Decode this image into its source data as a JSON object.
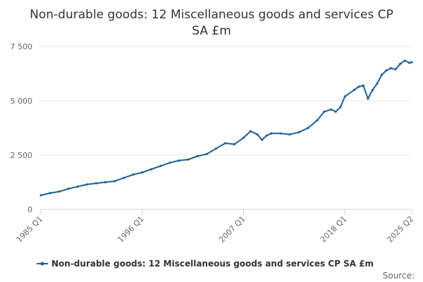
{
  "chart_data": {
    "type": "line",
    "title_lines": [
      "Non-durable goods: 12 Miscellaneous goods and services CP",
      "SA £m"
    ],
    "xlabel": "",
    "ylabel": "",
    "x_range": [
      1985.0,
      2025.25
    ],
    "ylim": [
      0,
      7500
    ],
    "y_ticks": [
      0,
      2500,
      5000,
      7500
    ],
    "y_tick_labels": [
      "0",
      "2 500",
      "5 000",
      "7 500"
    ],
    "x_ticks": [
      1985.0,
      1996.0,
      2007.0,
      2018.0,
      2025.25
    ],
    "x_tick_labels": [
      "1985 Q1",
      "1996 Q1",
      "2007 Q1",
      "2018 Q1",
      "2025 Q2"
    ],
    "grid": true,
    "legend_position": "bottom",
    "series": [
      {
        "name": "Non-durable goods: 12 Miscellaneous goods and services CP SA £m",
        "color": "#206095",
        "x": [
          1985.0,
          1986.0,
          1987.0,
          1988.0,
          1989.0,
          1990.0,
          1991.0,
          1992.0,
          1993.0,
          1994.0,
          1995.0,
          1996.0,
          1997.0,
          1998.0,
          1999.0,
          2000.0,
          2001.0,
          2002.0,
          2003.0,
          2004.0,
          2005.0,
          2006.0,
          2007.0,
          2007.75,
          2008.5,
          2009.0,
          2009.5,
          2010.0,
          2011.0,
          2012.0,
          2013.0,
          2014.0,
          2015.0,
          2015.75,
          2016.5,
          2017.0,
          2017.5,
          2018.0,
          2019.0,
          2019.5,
          2020.0,
          2020.5,
          2021.0,
          2021.5,
          2022.0,
          2022.5,
          2023.0,
          2023.5,
          2024.0,
          2024.5,
          2025.0,
          2025.25
        ],
        "y": [
          650,
          750,
          820,
          950,
          1050,
          1150,
          1200,
          1250,
          1300,
          1450,
          1600,
          1700,
          1850,
          2000,
          2150,
          2250,
          2300,
          2450,
          2550,
          2800,
          3050,
          3000,
          3300,
          3600,
          3450,
          3200,
          3400,
          3500,
          3500,
          3450,
          3550,
          3750,
          4100,
          4500,
          4600,
          4500,
          4700,
          5200,
          5500,
          5650,
          5700,
          5100,
          5500,
          5800,
          6200,
          6400,
          6500,
          6450,
          6700,
          6850,
          6750,
          6780
        ]
      }
    ]
  },
  "source_label": "Source:"
}
